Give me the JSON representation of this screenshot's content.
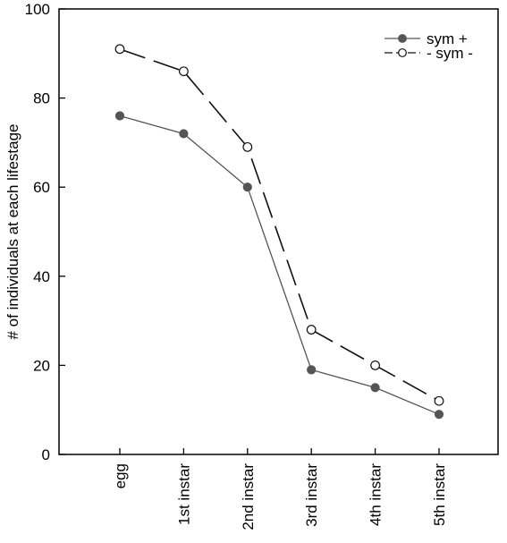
{
  "chart_data": {
    "type": "line",
    "title": "",
    "xlabel": "",
    "ylabel": "# of individuals at each lifestage",
    "categories": [
      "egg",
      "1st instar",
      "2nd instar",
      "3rd instar",
      "4th instar",
      "5th instar"
    ],
    "ylim": [
      0,
      100
    ],
    "yticks": [
      0,
      20,
      40,
      60,
      80,
      100
    ],
    "grid": false,
    "legend_position": "top-right",
    "series": [
      {
        "name": "sym +",
        "legend_label": "sym +",
        "values": [
          76,
          72,
          60,
          19,
          15,
          9
        ],
        "line_style": "solid",
        "marker": "filled-circle",
        "color": "#555555"
      },
      {
        "name": "sym -",
        "legend_label": "- sym -",
        "values": [
          91,
          86,
          69,
          28,
          20,
          12
        ],
        "line_style": "dashed",
        "marker": "open-circle",
        "color": "#111111"
      }
    ]
  }
}
